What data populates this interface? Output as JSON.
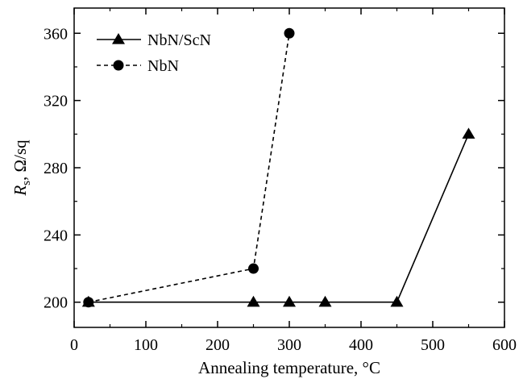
{
  "chart_data": {
    "type": "line",
    "xlabel": "Annealing temperature, °C",
    "ylabel_main": "R",
    "ylabel_sub": "s",
    "ylabel_rest": ", Ω/sq",
    "xlim": [
      0,
      600
    ],
    "ylim": [
      185,
      375
    ],
    "xticks": [
      0,
      100,
      200,
      300,
      400,
      500,
      600
    ],
    "yticks": [
      200,
      240,
      280,
      320,
      360
    ],
    "grid": false,
    "legend_position": "top-left",
    "series": [
      {
        "name": "NbN/ScN",
        "marker": "triangle",
        "line_style": "solid",
        "color": "#000000",
        "x": [
          20,
          250,
          300,
          350,
          450,
          550
        ],
        "y": [
          200,
          200,
          200,
          200,
          200,
          300
        ]
      },
      {
        "name": "NbN",
        "marker": "circle",
        "line_style": "dashed",
        "color": "#000000",
        "x": [
          20,
          250,
          300
        ],
        "y": [
          200,
          220,
          360
        ]
      }
    ]
  }
}
